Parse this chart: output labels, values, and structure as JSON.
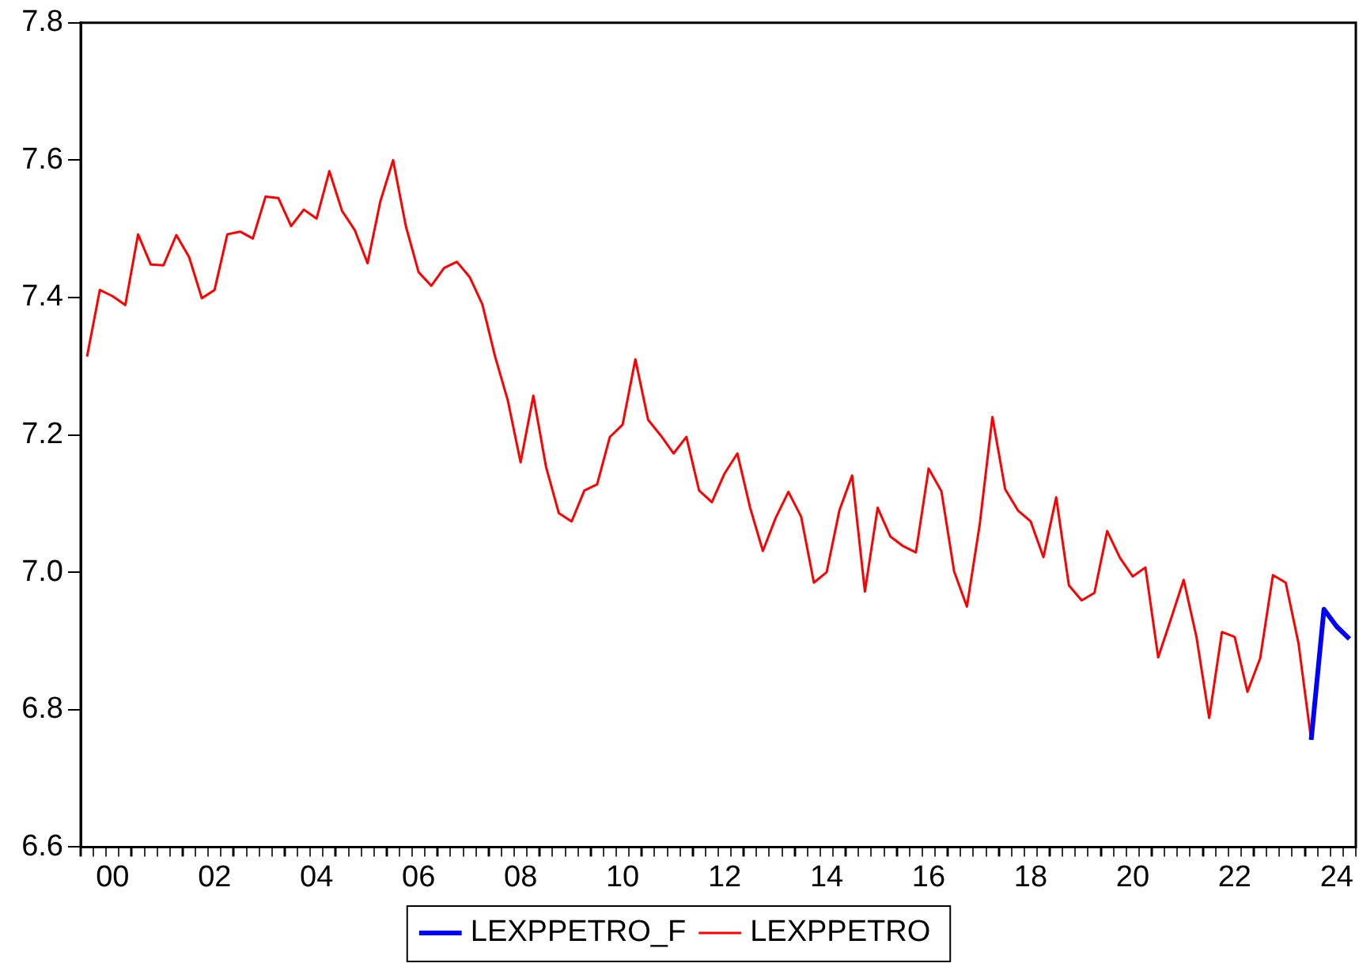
{
  "chart_data": {
    "type": "line",
    "categories": [
      null,
      null,
      "00",
      null,
      null,
      null,
      null,
      null,
      null,
      null,
      "02",
      null,
      null,
      null,
      null,
      null,
      null,
      null,
      "04",
      null,
      null,
      null,
      null,
      null,
      null,
      null,
      "06",
      null,
      null,
      null,
      null,
      null,
      null,
      null,
      "08",
      null,
      null,
      null,
      null,
      null,
      null,
      null,
      "10",
      null,
      null,
      null,
      null,
      null,
      null,
      null,
      "12",
      null,
      null,
      null,
      null,
      null,
      null,
      null,
      "14",
      null,
      null,
      null,
      null,
      null,
      null,
      null,
      "16",
      null,
      null,
      null,
      null,
      null,
      null,
      null,
      "18",
      null,
      null,
      null,
      null,
      null,
      null,
      null,
      "20",
      null,
      null,
      null,
      null,
      null,
      null,
      null,
      "22",
      null,
      null,
      null,
      null,
      null,
      null,
      null,
      "24",
      null
    ],
    "ylim": [
      6.6,
      7.8
    ],
    "yticks": [
      6.6,
      6.8,
      {
        "value": 7,
        "label": "7.0"
      },
      7.2,
      7.4,
      7.6,
      7.8
    ],
    "legend": "bottom",
    "marker": "none",
    "line_style": "solid",
    "series": [
      {
        "name": "LEXPPETRO_F",
        "color": "#0000ff",
        "values": [
          null,
          null,
          null,
          null,
          null,
          null,
          null,
          null,
          null,
          null,
          null,
          null,
          null,
          null,
          null,
          null,
          null,
          null,
          null,
          null,
          null,
          null,
          null,
          null,
          null,
          null,
          null,
          null,
          null,
          null,
          null,
          null,
          null,
          null,
          null,
          null,
          null,
          null,
          null,
          null,
          null,
          null,
          null,
          null,
          null,
          null,
          null,
          null,
          null,
          null,
          null,
          null,
          null,
          null,
          null,
          null,
          null,
          null,
          null,
          null,
          null,
          null,
          null,
          null,
          null,
          null,
          null,
          null,
          null,
          null,
          null,
          null,
          null,
          null,
          null,
          null,
          null,
          null,
          null,
          null,
          null,
          null,
          null,
          null,
          null,
          null,
          null,
          null,
          null,
          null,
          null,
          null,
          null,
          null,
          null,
          null,
          6.756,
          6.946,
          6.921,
          6.903
        ]
      },
      {
        "name": "LEXPPETRO",
        "color": "#ff0000",
        "values": [
          7.314,
          7.411,
          7.402,
          7.389,
          7.492,
          7.448,
          7.447,
          7.491,
          7.459,
          7.399,
          7.411,
          7.492,
          7.496,
          7.486,
          7.547,
          7.545,
          7.504,
          7.528,
          7.515,
          7.584,
          7.526,
          7.498,
          7.45,
          7.54,
          7.6,
          7.504,
          7.437,
          7.417,
          7.443,
          7.452,
          7.43,
          7.39,
          7.314,
          7.25,
          7.16,
          7.257,
          7.153,
          7.086,
          7.074,
          7.119,
          7.128,
          7.197,
          7.215,
          7.31,
          7.222,
          7.199,
          7.173,
          7.197,
          7.119,
          7.102,
          7.144,
          7.173,
          7.094,
          7.031,
          7.079,
          7.117,
          7.081,
          6.985,
          7,
          7.09,
          7.141,
          6.972,
          7.094,
          7.052,
          7.038,
          7.029,
          7.151,
          7.118,
          7.001,
          6.95,
          7.069,
          7.226,
          7.121,
          7.09,
          7.074,
          7.022,
          7.109,
          6.981,
          6.959,
          6.97,
          7.06,
          7.021,
          6.994,
          7.007,
          6.876,
          6.932,
          6.989,
          6.906,
          6.788,
          6.913,
          6.906,
          6.826,
          6.875,
          6.996,
          6.985,
          6.897,
          6.756,
          null,
          null,
          null
        ]
      }
    ]
  }
}
